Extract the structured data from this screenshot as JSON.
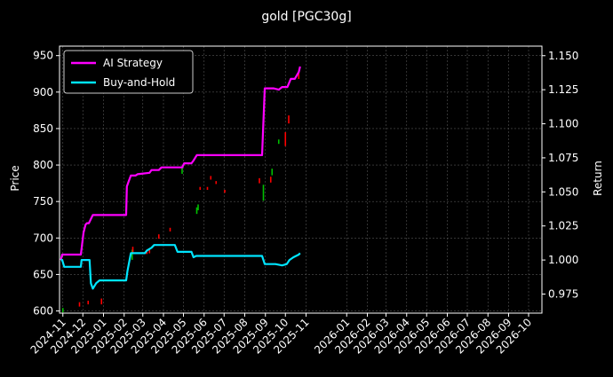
{
  "chart_data": {
    "type": "line",
    "title": "gold [PGC30g]",
    "ylabel_left": "Price",
    "ylabel_right": "Return",
    "xlabel": "",
    "grid": true,
    "legend_position": "top-left",
    "colors": {
      "background": "#000000",
      "ai_strategy": "#ff00ff",
      "buy_and_hold": "#00e5ff",
      "candle_up": "#00c000",
      "candle_down": "#ff0000",
      "grid": "#555555",
      "axis": "#ffffff"
    },
    "x_range": [
      "2024-10-26",
      "2026-10-20"
    ],
    "y_left_range": [
      597,
      963
    ],
    "y_right_range": [
      0.961,
      1.157
    ],
    "x_ticks": [
      "2024-11",
      "2024-12",
      "2025-01",
      "2025-02",
      "2025-03",
      "2025-04",
      "2025-05",
      "2025-06",
      "2025-07",
      "2025-08",
      "2025-09",
      "2025-10",
      "2025-11",
      "2026-01",
      "2026-02",
      "2026-03",
      "2026-04",
      "2026-05",
      "2026-06",
      "2026-07",
      "2026-08",
      "2026-09",
      "2026-10"
    ],
    "x_tick_dates": [
      "2024-10-31",
      "2024-11-30",
      "2024-12-31",
      "2025-01-31",
      "2025-02-28",
      "2025-03-31",
      "2025-04-30",
      "2025-05-31",
      "2025-06-30",
      "2025-07-31",
      "2025-08-31",
      "2025-09-30",
      "2025-10-31",
      "2025-12-31",
      "2026-01-31",
      "2026-02-28",
      "2026-03-31",
      "2026-04-30",
      "2026-05-31",
      "2026-06-30",
      "2026-07-31",
      "2026-08-31",
      "2026-09-30"
    ],
    "y_left_ticks": [
      600,
      650,
      700,
      750,
      800,
      850,
      900,
      950
    ],
    "y_right_ticks": [
      "0.975",
      "1.000",
      "1.025",
      "1.050",
      "1.075",
      "1.100",
      "1.125",
      "1.150"
    ],
    "y_right_tick_values": [
      0.975,
      1.0,
      1.025,
      1.05,
      1.075,
      1.1,
      1.125,
      1.15
    ],
    "series": [
      {
        "name": "AI Strategy",
        "axis": "right",
        "x": [
          "2024-10-28",
          "2024-10-30",
          "2024-11-15",
          "2024-11-27",
          "2024-12-01",
          "2024-12-04",
          "2024-12-06",
          "2024-12-09",
          "2024-12-15",
          "2025-01-20",
          "2025-02-03",
          "2025-02-04",
          "2025-02-07",
          "2025-02-10",
          "2025-02-17",
          "2025-02-20",
          "2025-03-10",
          "2025-03-13",
          "2025-03-24",
          "2025-03-28",
          "2025-04-28",
          "2025-05-01",
          "2025-05-12",
          "2025-05-15",
          "2025-05-20",
          "2025-08-26",
          "2025-08-30",
          "2025-09-12",
          "2025-09-20",
          "2025-09-25",
          "2025-10-03",
          "2025-10-08",
          "2025-10-14",
          "2025-10-20",
          "2025-10-22"
        ],
        "y": [
          1.0,
          1.004,
          1.004,
          1.004,
          1.02,
          1.026,
          1.027,
          1.027,
          1.033,
          1.033,
          1.033,
          1.054,
          1.058,
          1.062,
          1.062,
          1.063,
          1.064,
          1.066,
          1.066,
          1.068,
          1.068,
          1.071,
          1.071,
          1.073,
          1.077,
          1.077,
          1.126,
          1.126,
          1.125,
          1.127,
          1.127,
          1.133,
          1.133,
          1.138,
          1.142
        ]
      },
      {
        "name": "Buy-and-Hold",
        "axis": "right",
        "x": [
          "2024-10-28",
          "2024-10-30",
          "2024-11-02",
          "2024-11-27",
          "2024-11-28",
          "2024-12-10",
          "2024-12-12",
          "2024-12-15",
          "2024-12-20",
          "2024-12-25",
          "2025-02-03",
          "2025-02-05",
          "2025-02-10",
          "2025-03-03",
          "2025-03-06",
          "2025-03-13",
          "2025-03-17",
          "2025-04-17",
          "2025-04-21",
          "2025-05-08",
          "2025-05-12",
          "2025-05-15",
          "2025-05-19",
          "2025-08-26",
          "2025-08-30",
          "2025-09-10",
          "2025-09-15",
          "2025-09-25",
          "2025-10-02",
          "2025-10-06",
          "2025-10-12",
          "2025-10-20",
          "2025-10-22"
        ],
        "y": [
          1.0,
          1.0,
          0.995,
          0.995,
          1.0,
          1.0,
          0.983,
          0.979,
          0.983,
          0.985,
          0.985,
          0.992,
          1.005,
          1.005,
          1.007,
          1.009,
          1.011,
          1.011,
          1.006,
          1.006,
          1.006,
          1.002,
          1.003,
          1.003,
          0.997,
          0.997,
          0.997,
          0.996,
          0.997,
          1.0,
          1.002,
          1.004,
          1.005
        ]
      }
    ],
    "candles": [
      {
        "date": "2024-10-31",
        "low": 598,
        "high": 604,
        "dir": "up"
      },
      {
        "date": "2024-11-25",
        "low": 606,
        "high": 612,
        "dir": "down"
      },
      {
        "date": "2024-12-08",
        "low": 609,
        "high": 614,
        "dir": "down"
      },
      {
        "date": "2024-12-28",
        "low": 609,
        "high": 617,
        "dir": "down"
      },
      {
        "date": "2025-02-12",
        "low": 670,
        "high": 684,
        "dir": "up"
      },
      {
        "date": "2025-02-13",
        "low": 678,
        "high": 688,
        "dir": "down"
      },
      {
        "date": "2025-03-06",
        "low": 678,
        "high": 683,
        "dir": "down"
      },
      {
        "date": "2025-03-10",
        "low": 679,
        "high": 684,
        "dir": "down"
      },
      {
        "date": "2025-03-24",
        "low": 699,
        "high": 705,
        "dir": "down"
      },
      {
        "date": "2025-04-10",
        "low": 709,
        "high": 714,
        "dir": "down"
      },
      {
        "date": "2025-04-28",
        "low": 788,
        "high": 797,
        "dir": "up"
      },
      {
        "date": "2025-05-20",
        "low": 733,
        "high": 742,
        "dir": "up"
      },
      {
        "date": "2025-05-22",
        "low": 738,
        "high": 746,
        "dir": "up"
      },
      {
        "date": "2025-05-25",
        "low": 766,
        "high": 770,
        "dir": "down"
      },
      {
        "date": "2025-06-05",
        "low": 766,
        "high": 770,
        "dir": "down"
      },
      {
        "date": "2025-06-10",
        "low": 780,
        "high": 785,
        "dir": "down"
      },
      {
        "date": "2025-06-18",
        "low": 774,
        "high": 778,
        "dir": "down"
      },
      {
        "date": "2025-07-01",
        "low": 762,
        "high": 766,
        "dir": "down"
      },
      {
        "date": "2025-08-22",
        "low": 775,
        "high": 782,
        "dir": "down"
      },
      {
        "date": "2025-08-28",
        "low": 751,
        "high": 773,
        "dir": "up"
      },
      {
        "date": "2025-09-08",
        "low": 776,
        "high": 784,
        "dir": "down"
      },
      {
        "date": "2025-09-10",
        "low": 786,
        "high": 795,
        "dir": "up"
      },
      {
        "date": "2025-09-20",
        "low": 829,
        "high": 835,
        "dir": "up"
      },
      {
        "date": "2025-09-30",
        "low": 826,
        "high": 845,
        "dir": "down"
      },
      {
        "date": "2025-10-05",
        "low": 857,
        "high": 868,
        "dir": "down"
      },
      {
        "date": "2025-10-20",
        "low": 918,
        "high": 928,
        "dir": "down"
      }
    ]
  }
}
